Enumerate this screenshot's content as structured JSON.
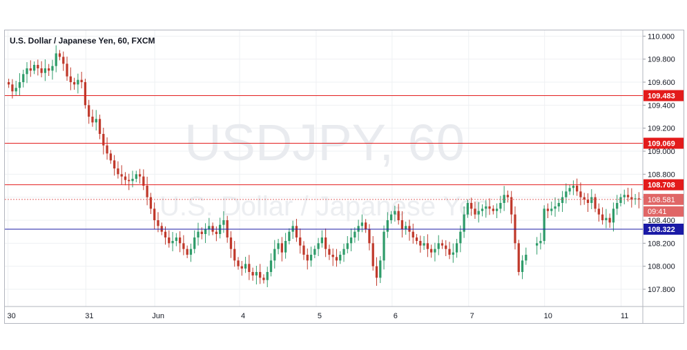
{
  "chart_data": {
    "type": "candlestick",
    "title": "U.S. Dollar / Japanese Yen, 60, FXCM",
    "watermark": {
      "symbol": "USDJPY, 60",
      "name": "U.S. Dollar / Japanese Yen"
    },
    "ylim": [
      107.65,
      110.05
    ],
    "y_ticks": [
      "110.000",
      "109.800",
      "109.600",
      "109.400",
      "109.200",
      "109.000",
      "108.800",
      "108.600",
      "108.400",
      "108.200",
      "108.000",
      "107.800"
    ],
    "x_ticks": [
      {
        "label": "30",
        "pos": 0.005
      },
      {
        "label": "31",
        "pos": 0.127
      },
      {
        "label": "Jun",
        "pos": 0.235
      },
      {
        "label": "4",
        "pos": 0.368
      },
      {
        "label": "5",
        "pos": 0.488
      },
      {
        "label": "6",
        "pos": 0.607
      },
      {
        "label": "7",
        "pos": 0.727
      },
      {
        "label": "10",
        "pos": 0.846
      },
      {
        "label": "11",
        "pos": 0.966
      }
    ],
    "levels": [
      {
        "label": "109.483",
        "value": 109.483,
        "color": "#e31b1b"
      },
      {
        "label": "109.069",
        "value": 109.069,
        "color": "#e31b1b"
      },
      {
        "label": "108.708",
        "value": 108.708,
        "color": "#e31b1b"
      },
      {
        "label": "108.322",
        "value": 108.322,
        "color": "#1a1aa6"
      }
    ],
    "current": {
      "label": "108.581",
      "value": 108.581,
      "countdown": "09:41",
      "color": "#e06666"
    },
    "up_color": "#2f9c6a",
    "down_color": "#c0392b",
    "closes": [
      109.58,
      109.52,
      109.55,
      109.6,
      109.67,
      109.72,
      109.7,
      109.75,
      109.72,
      109.68,
      109.72,
      109.7,
      109.74,
      109.85,
      109.82,
      109.76,
      109.65,
      109.6,
      109.58,
      109.62,
      109.6,
      109.4,
      109.3,
      109.25,
      109.28,
      109.15,
      109.05,
      108.98,
      108.92,
      108.85,
      108.8,
      108.78,
      108.75,
      108.74,
      108.76,
      108.8,
      108.78,
      108.7,
      108.6,
      108.5,
      108.4,
      108.35,
      108.3,
      108.25,
      108.2,
      108.22,
      108.25,
      108.2,
      108.15,
      108.1,
      108.15,
      108.25,
      108.3,
      108.28,
      108.32,
      108.35,
      108.3,
      108.28,
      108.36,
      108.4,
      108.25,
      108.15,
      108.05,
      108.0,
      107.98,
      108.02,
      107.95,
      107.92,
      107.95,
      107.9,
      107.88,
      107.95,
      108.05,
      108.15,
      108.2,
      108.12,
      108.22,
      108.3,
      108.35,
      108.25,
      108.18,
      108.1,
      108.05,
      108.1,
      108.15,
      108.2,
      108.25,
      108.15,
      108.1,
      108.08,
      108.05,
      108.1,
      108.15,
      108.2,
      108.25,
      108.3,
      108.35,
      108.38,
      108.32,
      108.2,
      108.0,
      107.9,
      108.05,
      108.3,
      108.4,
      108.45,
      108.48,
      108.4,
      108.32,
      108.35,
      108.3,
      108.25,
      108.22,
      108.18,
      108.2,
      108.15,
      108.12,
      108.15,
      108.2,
      108.18,
      108.15,
      108.1,
      108.12,
      108.2,
      108.3,
      108.45,
      108.55,
      108.5,
      108.45,
      108.48,
      108.5,
      108.52,
      108.5,
      108.48,
      108.5,
      108.55,
      108.62,
      108.6,
      108.45,
      108.2,
      107.95,
      108.05,
      108.1,
      108.15,
      108.18,
      108.2,
      108.22,
      108.5,
      108.48,
      108.5,
      108.52,
      108.55,
      108.6,
      108.65,
      108.68,
      108.7,
      108.65,
      108.6,
      108.58,
      108.55,
      108.6,
      108.5,
      108.45,
      108.4,
      108.42,
      108.38,
      108.5,
      108.55,
      108.6,
      108.62,
      108.6,
      108.58,
      108.59,
      108.581
    ]
  }
}
